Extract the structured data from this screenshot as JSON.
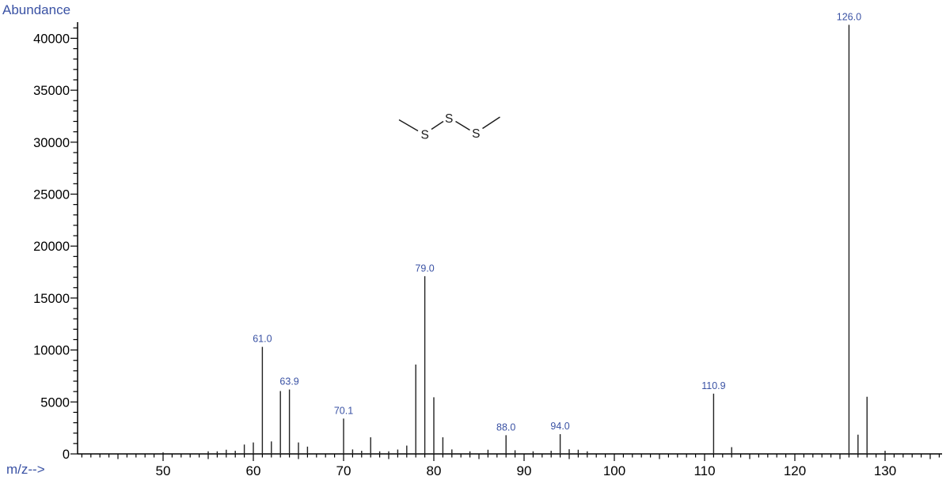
{
  "labels": {
    "y_axis": "Abundance",
    "x_axis": "m/z-->"
  },
  "colors": {
    "axis": "#000000",
    "peak": "#222222",
    "tick_label": "#000000",
    "label_blue": "#3a52a4"
  },
  "molecule": {
    "atom_labels": [
      "S",
      "S",
      "S"
    ]
  },
  "chart_data": {
    "type": "bar",
    "subtype": "mass-spectrum-stick",
    "title": "",
    "xlabel": "m/z-->",
    "ylabel": "Abundance",
    "xlim": [
      40.5,
      136.3
    ],
    "ylim": [
      0,
      41560
    ],
    "grid": false,
    "x_major_ticks": [
      50,
      60,
      70,
      80,
      90,
      100,
      110,
      120,
      130
    ],
    "y_major_ticks": [
      0,
      5000,
      10000,
      15000,
      20000,
      25000,
      30000,
      35000,
      40000
    ],
    "x_minor_step": 1,
    "x_medium_step": 5,
    "y_minor_step": 1000,
    "peaks": [
      {
        "mz": 50,
        "intensity": 150
      },
      {
        "mz": 55,
        "intensity": 250
      },
      {
        "mz": 56,
        "intensity": 250
      },
      {
        "mz": 57,
        "intensity": 400
      },
      {
        "mz": 58,
        "intensity": 300
      },
      {
        "mz": 59,
        "intensity": 900
      },
      {
        "mz": 60,
        "intensity": 1100
      },
      {
        "mz": 61,
        "intensity": 10300,
        "label": "61.0"
      },
      {
        "mz": 62,
        "intensity": 1200
      },
      {
        "mz": 63,
        "intensity": 6050
      },
      {
        "mz": 64,
        "intensity": 6200,
        "label": "63.9"
      },
      {
        "mz": 65,
        "intensity": 1100
      },
      {
        "mz": 66,
        "intensity": 700
      },
      {
        "mz": 70,
        "intensity": 3400,
        "label": "70.1"
      },
      {
        "mz": 71,
        "intensity": 430
      },
      {
        "mz": 72,
        "intensity": 300
      },
      {
        "mz": 73,
        "intensity": 1600
      },
      {
        "mz": 74,
        "intensity": 250
      },
      {
        "mz": 75,
        "intensity": 250
      },
      {
        "mz": 76,
        "intensity": 420
      },
      {
        "mz": 77,
        "intensity": 800
      },
      {
        "mz": 78,
        "intensity": 8600
      },
      {
        "mz": 79,
        "intensity": 17100,
        "label": "79.0"
      },
      {
        "mz": 80,
        "intensity": 5450
      },
      {
        "mz": 81,
        "intensity": 1600
      },
      {
        "mz": 82,
        "intensity": 430
      },
      {
        "mz": 84,
        "intensity": 250
      },
      {
        "mz": 86,
        "intensity": 400
      },
      {
        "mz": 88,
        "intensity": 1800,
        "label": "88.0"
      },
      {
        "mz": 89,
        "intensity": 350
      },
      {
        "mz": 91,
        "intensity": 250
      },
      {
        "mz": 93,
        "intensity": 300
      },
      {
        "mz": 94,
        "intensity": 1900,
        "label": "94.0"
      },
      {
        "mz": 95,
        "intensity": 450
      },
      {
        "mz": 96,
        "intensity": 400
      },
      {
        "mz": 97,
        "intensity": 250
      },
      {
        "mz": 111,
        "intensity": 5800,
        "label": "110.9"
      },
      {
        "mz": 113,
        "intensity": 650
      },
      {
        "mz": 126,
        "intensity": 41300,
        "label": "126.0"
      },
      {
        "mz": 127,
        "intensity": 1850
      },
      {
        "mz": 128,
        "intensity": 5500
      },
      {
        "mz": 130,
        "intensity": 300
      }
    ]
  }
}
